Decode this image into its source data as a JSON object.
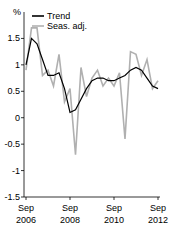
{
  "chart_data": {
    "type": "line",
    "y_label": "%",
    "categories": [
      "Sep 2006",
      null,
      null,
      null,
      null,
      null,
      null,
      null,
      "Sep 2008",
      null,
      null,
      null,
      null,
      null,
      null,
      null,
      "Sep 2010",
      null,
      null,
      null,
      null,
      null,
      null,
      null,
      "Sep 2012"
    ],
    "series": [
      {
        "name": "Trend",
        "color": "#000000",
        "values": [
          1.0,
          1.5,
          1.4,
          1.1,
          0.8,
          0.8,
          0.85,
          0.55,
          0.1,
          0.15,
          0.35,
          0.55,
          0.7,
          0.75,
          0.75,
          0.7,
          0.7,
          0.75,
          0.8,
          0.9,
          0.95,
          0.9,
          0.75,
          0.6,
          0.55
        ]
      },
      {
        "name": "Seas. adj.",
        "color": "#b0b0b0",
        "values": [
          0.9,
          1.7,
          1.7,
          0.8,
          0.9,
          0.6,
          1.2,
          0.3,
          0.55,
          -0.7,
          0.95,
          0.4,
          0.75,
          0.9,
          0.6,
          0.75,
          0.6,
          0.85,
          -0.4,
          1.25,
          1.2,
          0.8,
          1.1,
          0.55,
          0.7
        ]
      }
    ],
    "ylim": [
      -1.5,
      2.0
    ],
    "yticks": [
      -1.5,
      -1.0,
      -0.5,
      0,
      0.5,
      1.0,
      1.5
    ],
    "legend": "top-left",
    "grid": false
  }
}
